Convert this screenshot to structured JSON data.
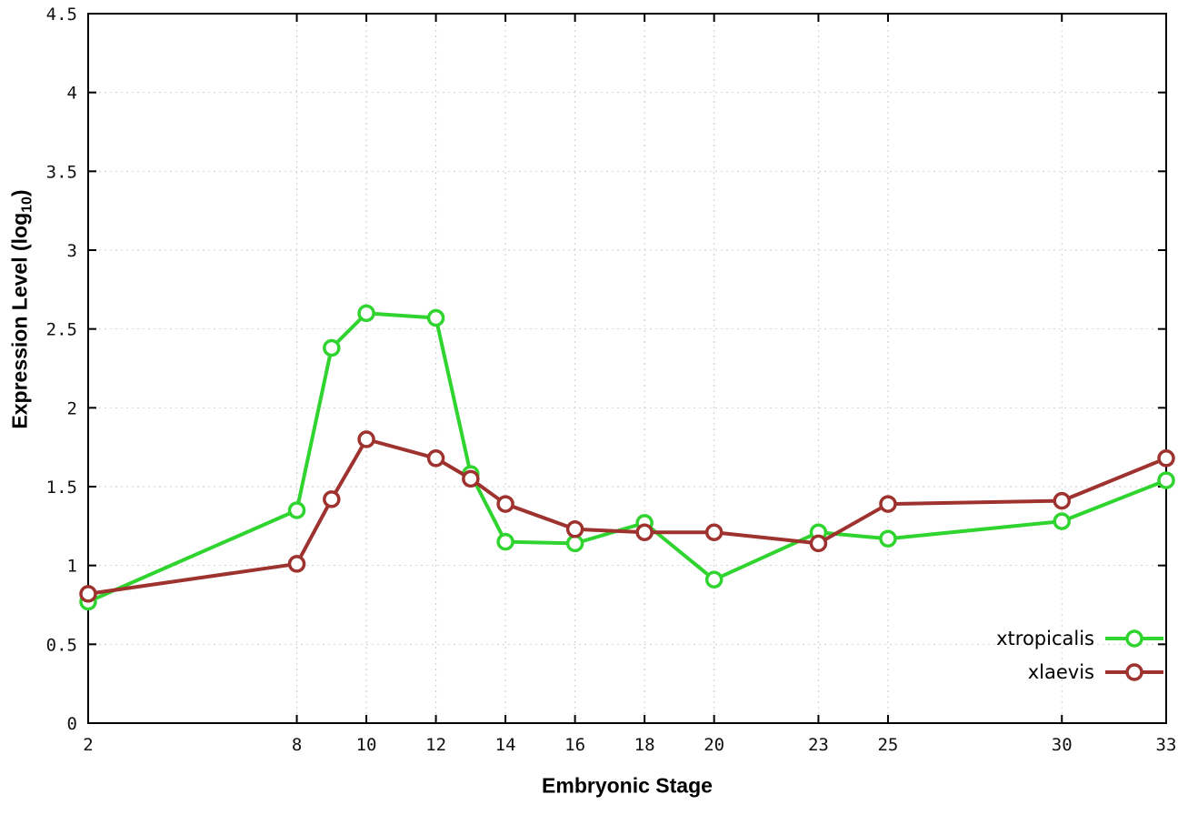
{
  "chart_data": {
    "type": "line",
    "title": "",
    "xlabel": "Embryonic Stage",
    "ylabel": "Expression Level (log10)",
    "ylabel_parts": {
      "pre": "Expression Level (log",
      "sub": "10",
      "post": ")"
    },
    "xlim": [
      2,
      33
    ],
    "ylim": [
      0,
      4.5
    ],
    "x_ticks": [
      2,
      8,
      10,
      12,
      14,
      16,
      18,
      20,
      23,
      25,
      30,
      33
    ],
    "y_ticks": [
      0,
      0.5,
      1,
      1.5,
      2,
      2.5,
      3,
      3.5,
      4,
      4.5
    ],
    "grid": true,
    "legend_position": "bottom-right",
    "background_color": "#ffffff",
    "grid_color": "#cfcfcf",
    "series": [
      {
        "name": "xtropicalis",
        "color": "#2fd42f",
        "marker": "circle-open",
        "x": [
          2,
          8,
          9,
          10,
          12,
          13,
          14,
          16,
          18,
          20,
          23,
          25,
          30,
          33
        ],
        "y": [
          0.77,
          1.35,
          2.38,
          2.6,
          2.57,
          1.58,
          1.15,
          1.14,
          1.27,
          0.91,
          1.21,
          1.17,
          1.28,
          1.54
        ]
      },
      {
        "name": "xlaevis",
        "color": "#9e322e",
        "marker": "circle-open",
        "x": [
          2,
          8,
          9,
          10,
          12,
          13,
          14,
          16,
          18,
          20,
          23,
          25,
          30,
          33
        ],
        "y": [
          0.82,
          1.01,
          1.42,
          1.8,
          1.68,
          1.55,
          1.39,
          1.23,
          1.21,
          1.21,
          1.14,
          1.39,
          1.41,
          1.68
        ]
      }
    ]
  }
}
